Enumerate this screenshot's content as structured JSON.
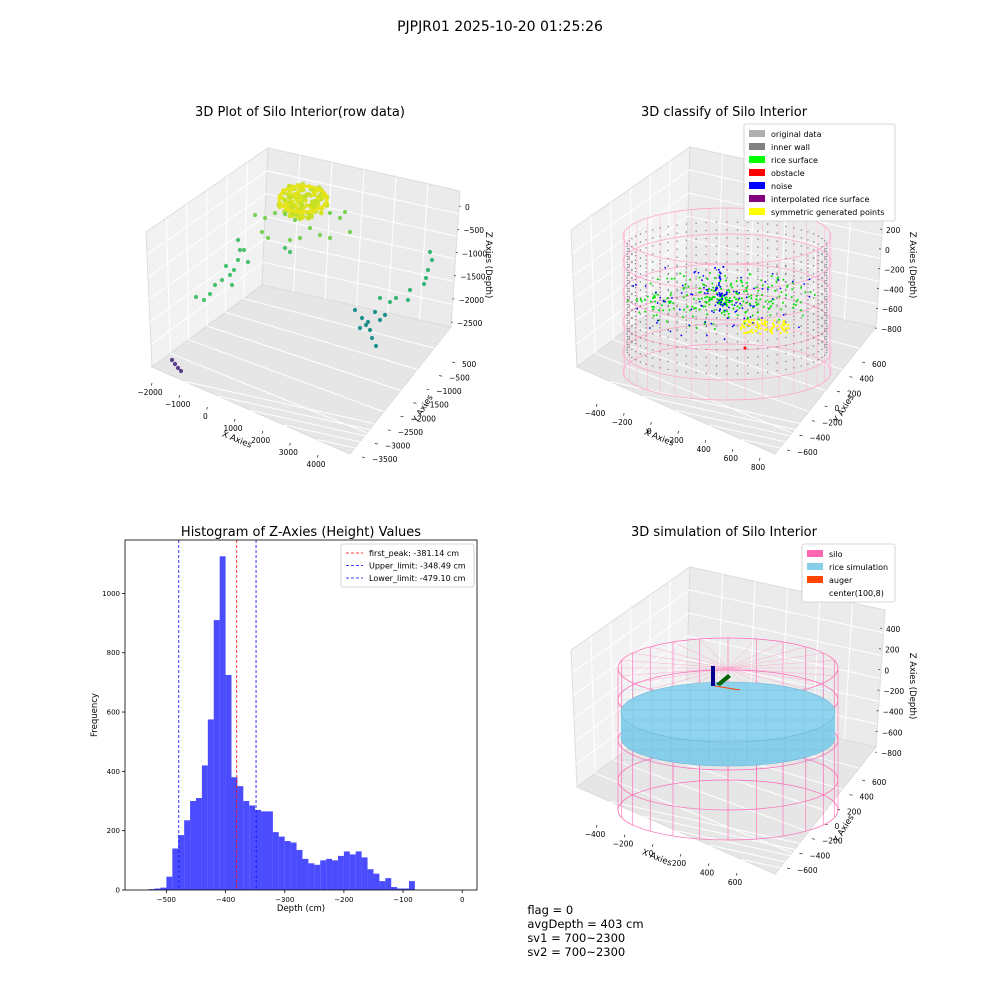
{
  "figure": {
    "title": "PJPJR01 2025-10-20 01:25:26"
  },
  "chart_data": [
    {
      "type": "scatter",
      "projection": "3d",
      "title": "3D Plot of Silo Interior(row data)",
      "xlabel": "X Axies",
      "ylabel": "Y Axies",
      "zlabel": "Z Axies (Depth)",
      "x_ticks": [
        -2000,
        -1000,
        0,
        1000,
        2000,
        3000,
        4000
      ],
      "y_ticks": [
        500,
        -500,
        -1000,
        -1500,
        -2000,
        -2500,
        -3000,
        -3500
      ],
      "z_ticks": [
        0,
        -500,
        -1000,
        -1500,
        -2000,
        -2500
      ],
      "colormap": "viridis",
      "clusters": [
        {
          "x": 1500,
          "y": 300,
          "z": -100,
          "color": "#dde318"
        },
        {
          "x": 400,
          "y": -500,
          "z": -800,
          "color": "#7ad151"
        },
        {
          "x": -600,
          "y": -600,
          "z": -1300,
          "color": "#4ac16d"
        },
        {
          "x": 3300,
          "y": -1500,
          "z": -1500,
          "color": "#2a9d8f"
        },
        {
          "x": 2200,
          "y": -2200,
          "z": -2000,
          "color": "#21918c"
        },
        {
          "x": -1300,
          "y": -400,
          "z": -2500,
          "color": "#5b3f8c"
        }
      ]
    },
    {
      "type": "scatter",
      "projection": "3d",
      "title": "3D classify of Silo Interior",
      "xlabel": "X Axies",
      "ylabel": "Y Axies",
      "zlabel": "Z Axies (Depth)",
      "x_ticks": [
        -400,
        -200,
        0,
        200,
        400,
        600,
        800
      ],
      "y_ticks": [
        600,
        400,
        200,
        0,
        -200,
        -400,
        -600
      ],
      "z_ticks": [
        200,
        0,
        -200,
        -400,
        -600,
        -800
      ],
      "legend": [
        {
          "label": "original data",
          "color": "#b0b0b0"
        },
        {
          "label": "inner wall",
          "color": "#808080"
        },
        {
          "label": "rice surface",
          "color": "#00ff00"
        },
        {
          "label": "obstacle",
          "color": "#ff0000"
        },
        {
          "label": "noise",
          "color": "#0000ff"
        },
        {
          "label": "interpolated rice surface",
          "color": "#800080"
        },
        {
          "label": "symmetric generated points",
          "color": "#ffff00"
        }
      ]
    },
    {
      "type": "bar",
      "title": "Histogram of Z-Axies (Height) Values",
      "xlabel": "Depth (cm)",
      "ylabel": "Frequency",
      "xlim": [
        -570,
        25
      ],
      "ylim": [
        0,
        1180
      ],
      "x_ticks": [
        -500,
        -400,
        -300,
        -200,
        -100,
        0
      ],
      "y_ticks": [
        0,
        200,
        400,
        600,
        800,
        1000
      ],
      "bin_start": -530,
      "bin_width": 10,
      "values": [
        3,
        5,
        8,
        45,
        140,
        185,
        235,
        300,
        310,
        420,
        575,
        910,
        1125,
        725,
        380,
        350,
        300,
        285,
        270,
        265,
        265,
        195,
        180,
        165,
        160,
        135,
        105,
        90,
        85,
        100,
        105,
        100,
        115,
        130,
        120,
        130,
        110,
        70,
        55,
        30,
        40,
        10,
        5,
        5,
        30
      ],
      "bar_color": "#0000ff",
      "vlines": [
        {
          "label": "first_peak: -381.14 cm",
          "x": -381.14,
          "color": "#ff0000"
        },
        {
          "label": "Upper_limit: -348.49 cm",
          "x": -348.49,
          "color": "#0000ff"
        },
        {
          "label": "Lower_limit: -479.10 cm",
          "x": -479.1,
          "color": "#0000ff"
        }
      ]
    },
    {
      "type": "surface",
      "projection": "3d",
      "title": "3D simulation of Silo Interior",
      "xlabel": "X Axies",
      "ylabel": "Y Axies",
      "zlabel": "Z Axies (Depth)",
      "x_ticks": [
        -400,
        -200,
        0,
        200,
        400,
        600
      ],
      "y_ticks": [
        600,
        400,
        200,
        0,
        -200,
        -400,
        -600
      ],
      "z_ticks": [
        400,
        200,
        0,
        -200,
        -400,
        -600,
        -800
      ],
      "legend": [
        {
          "label": "silo",
          "color": "#ff69b4"
        },
        {
          "label": "rice simulation",
          "color": "#87ceeb"
        },
        {
          "label": "auger",
          "color": "#ff4500"
        },
        {
          "label": "center(100,8)",
          "color": ""
        }
      ]
    }
  ],
  "footer": {
    "flag": "flag = 0",
    "avg_depth": "avgDepth = 403 cm",
    "sv1": "sv1 = 700~2300",
    "sv2": "sv2 = 700~2300"
  }
}
